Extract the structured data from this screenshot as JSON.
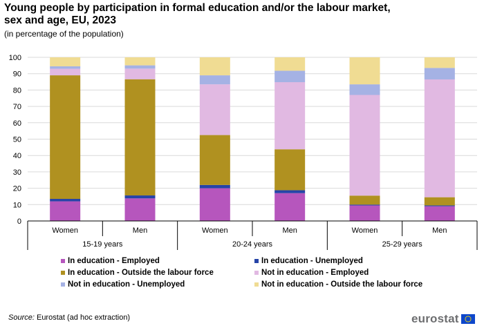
{
  "header": {
    "title": "Young people by participation in formal education and/or the labour market, sex and age, EU, 2023",
    "subtitle": "(in percentage of the population)"
  },
  "chart_data": {
    "type": "bar",
    "stacked": true,
    "ylim": [
      0,
      100
    ],
    "yticks": [
      0,
      10,
      20,
      30,
      40,
      50,
      60,
      70,
      80,
      90,
      100
    ],
    "grid": true,
    "legend_position": "bottom",
    "categories": [
      "Women",
      "Men",
      "Women",
      "Men",
      "Women",
      "Men"
    ],
    "groups": [
      {
        "label": "15-19 years",
        "span": [
          0,
          1
        ]
      },
      {
        "label": "20-24 years",
        "span": [
          2,
          3
        ]
      },
      {
        "label": "25-29 years",
        "span": [
          4,
          5
        ]
      }
    ],
    "series": [
      {
        "name": "In education - Employed",
        "color": "#b656bd",
        "values": [
          12.0,
          13.8,
          20.0,
          17.0,
          9.5,
          9.0
        ]
      },
      {
        "name": "In education - Unemployed",
        "color": "#2644a7",
        "values": [
          1.5,
          1.8,
          2.0,
          1.8,
          0.5,
          0.5
        ]
      },
      {
        "name": "In education - Outside the labour force",
        "color": "#b09120",
        "values": [
          75.5,
          71.0,
          30.5,
          25.0,
          5.5,
          5.0
        ]
      },
      {
        "name": "Not in education - Employed",
        "color": "#e1b9e2",
        "values": [
          4.0,
          6.5,
          31.0,
          41.0,
          61.5,
          72.0
        ]
      },
      {
        "name": "Not in education - Unemployed",
        "color": "#a5b2e4",
        "values": [
          1.5,
          2.0,
          5.5,
          7.0,
          6.5,
          7.0
        ]
      },
      {
        "name": "Not in education - Outside the labour force",
        "color": "#f0dc93",
        "values": [
          5.5,
          4.9,
          11.0,
          8.2,
          16.5,
          6.5
        ]
      }
    ]
  },
  "footer": {
    "source_label": "Source:",
    "source_text": " Eurostat (ad hoc extraction)",
    "logo_text": "eurostat"
  }
}
